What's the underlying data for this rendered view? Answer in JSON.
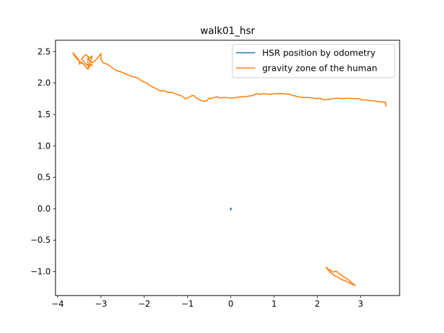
{
  "chart_data": {
    "type": "line",
    "title": "walk01_hsr",
    "xlabel": "",
    "ylabel": "",
    "xlim": [
      -4.05,
      3.9
    ],
    "ylim": [
      -1.38,
      2.68
    ],
    "xticks": [
      -4,
      -3,
      -2,
      -1,
      0,
      1,
      2,
      3
    ],
    "yticks": [
      -1.0,
      -0.5,
      0.0,
      0.5,
      1.0,
      1.5,
      2.0,
      2.5
    ],
    "xtick_labels": [
      "−4",
      "−3",
      "−2",
      "−1",
      "0",
      "1",
      "2",
      "3"
    ],
    "ytick_labels": [
      "−1.0",
      "−0.5",
      "0.0",
      "0.5",
      "1.0",
      "1.5",
      "2.0",
      "2.5"
    ],
    "grid": false,
    "legend": "top-right",
    "series": [
      {
        "name": "HSR position by odometry",
        "color": "#1f77b4",
        "x": [
          0.0,
          0.01,
          0.0,
          -0.01,
          0.0
        ],
        "y": [
          -0.02,
          0.0,
          0.01,
          0.0,
          -0.01
        ]
      },
      {
        "name": "gravity zone of the human",
        "color": "#ff7f0e",
        "segments": [
          {
            "x": [
              3.58,
              3.58,
              3.57,
              3.56,
              3.5,
              3.45,
              3.35,
              3.25,
              3.15,
              3.05,
              2.95,
              2.85,
              2.7,
              2.6,
              2.45,
              2.35,
              2.25,
              2.15,
              2.05,
              2.0,
              1.9,
              1.8,
              1.7,
              1.65,
              1.55,
              1.45,
              1.35,
              1.2,
              1.05,
              0.9,
              0.75,
              0.65,
              0.6,
              0.5,
              0.4,
              0.3,
              0.2,
              0.15,
              0.1,
              0.05,
              0.0,
              -0.1,
              -0.2,
              -0.25,
              -0.3,
              -0.4,
              -0.45,
              -0.5,
              -0.55,
              -0.6,
              -0.7,
              -0.75,
              -0.8,
              -0.85,
              -0.9,
              -1.0,
              -1.05,
              -1.15,
              -1.25,
              -1.35,
              -1.45,
              -1.55,
              -1.6,
              -1.65,
              -1.75,
              -1.85,
              -1.95,
              -2.05,
              -2.15,
              -2.25,
              -2.35,
              -2.45,
              -2.55,
              -2.65,
              -2.75,
              -2.85,
              -2.95,
              -3.0,
              -3.0,
              -3.05,
              -3.1,
              -3.15,
              -3.2,
              -3.25,
              -3.3,
              -3.3,
              -3.35,
              -3.4,
              -3.45,
              -3.4,
              -3.35,
              -3.3,
              -3.25,
              -3.2,
              -3.25,
              -3.3,
              -3.35,
              -3.4,
              -3.45,
              -3.5,
              -3.55,
              -3.6,
              -3.65,
              -3.62,
              -3.55,
              -3.5,
              -3.5,
              -3.45,
              -3.4,
              -3.35,
              -3.3,
              -3.25,
              -3.22,
              -3.2
            ],
            "y": [
              1.63,
              1.67,
              1.7,
              1.69,
              1.7,
              1.7,
              1.71,
              1.72,
              1.73,
              1.73,
              1.75,
              1.75,
              1.76,
              1.75,
              1.76,
              1.75,
              1.74,
              1.73,
              1.76,
              1.75,
              1.76,
              1.77,
              1.77,
              1.77,
              1.78,
              1.8,
              1.82,
              1.83,
              1.83,
              1.82,
              1.83,
              1.82,
              1.83,
              1.8,
              1.79,
              1.78,
              1.78,
              1.77,
              1.77,
              1.76,
              1.76,
              1.77,
              1.77,
              1.76,
              1.78,
              1.77,
              1.75,
              1.76,
              1.72,
              1.71,
              1.72,
              1.75,
              1.76,
              1.8,
              1.8,
              1.76,
              1.75,
              1.8,
              1.82,
              1.85,
              1.85,
              1.88,
              1.87,
              1.88,
              1.92,
              1.95,
              2.0,
              2.03,
              2.08,
              2.1,
              2.12,
              2.15,
              2.18,
              2.2,
              2.25,
              2.3,
              2.32,
              2.38,
              2.47,
              2.42,
              2.38,
              2.35,
              2.32,
              2.35,
              2.4,
              2.28,
              2.3,
              2.35,
              2.38,
              2.42,
              2.45,
              2.42,
              2.4,
              2.43,
              2.33,
              2.23,
              2.25,
              2.3,
              2.33,
              2.35,
              2.38,
              2.42,
              2.48,
              2.46,
              2.4,
              2.35,
              2.3,
              2.32,
              2.3,
              2.25,
              2.22,
              2.28,
              2.3,
              2.27
            ]
          },
          {
            "x": [
              2.88,
              2.8,
              2.75,
              2.7,
              2.65,
              2.6,
              2.55,
              2.5,
              2.45,
              2.4,
              2.38,
              2.35,
              2.32,
              2.3,
              2.28,
              2.25,
              2.22,
              2.2,
              2.22,
              2.3,
              2.35,
              2.42,
              2.5,
              2.58,
              2.65,
              2.72,
              2.8,
              2.88
            ],
            "y": [
              -1.22,
              -1.18,
              -1.15,
              -1.12,
              -1.1,
              -1.08,
              -1.05,
              -1.03,
              -1.0,
              -0.99,
              -1.01,
              -1.0,
              -0.99,
              -0.97,
              -0.98,
              -0.96,
              -0.94,
              -0.93,
              -0.95,
              -1.01,
              -1.04,
              -1.07,
              -1.1,
              -1.13,
              -1.15,
              -1.17,
              -1.2,
              -1.22
            ]
          }
        ]
      }
    ]
  }
}
